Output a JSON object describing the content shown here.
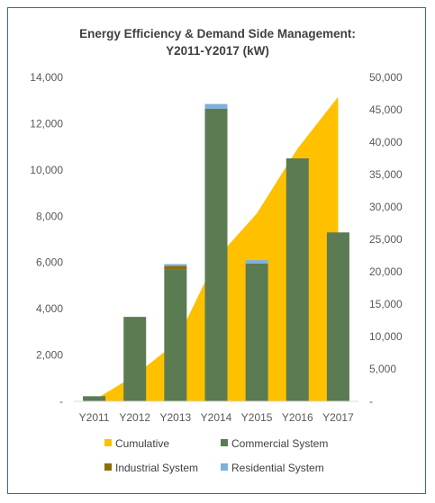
{
  "chart_data": {
    "type": "bar",
    "title_line1": "Energy Efficiency & Demand Side Management:",
    "title_line2": "Y2011-Y2017 (kW)",
    "categories": [
      "Y2011",
      "Y2012",
      "Y2013",
      "Y2014",
      "Y2015",
      "Y2016",
      "Y2017"
    ],
    "y_left": {
      "min": 0,
      "max": 14000,
      "step": 2000,
      "tick_labels": [
        "-",
        "2,000",
        "4,000",
        "6,000",
        "8,000",
        "10,000",
        "12,000",
        "14,000"
      ]
    },
    "y_right": {
      "min": 0,
      "max": 50000,
      "step": 5000,
      "tick_labels": [
        "-",
        "5,000",
        "10,000",
        "15,000",
        "20,000",
        "25,000",
        "30,000",
        "35,000",
        "40,000",
        "45,000",
        "50,000"
      ]
    },
    "grid": false,
    "legend_position": "bottom",
    "series": [
      {
        "name": "Cumulative",
        "type": "area",
        "axis": "right",
        "color": "#ffc000",
        "values": [
          200,
          4000,
          9000,
          22000,
          29000,
          39000,
          47000
        ]
      },
      {
        "name": "Commercial System",
        "type": "bar",
        "axis": "left",
        "color": "#5b7b53",
        "values": [
          220,
          3650,
          5700,
          12650,
          5950,
          10500,
          7300
        ]
      },
      {
        "name": "Industrial System",
        "type": "bar",
        "axis": "left",
        "color": "#8b6f0d",
        "values": [
          0,
          0,
          150,
          0,
          0,
          0,
          0
        ]
      },
      {
        "name": "Residential System",
        "type": "bar",
        "axis": "left",
        "color": "#7eb0de",
        "values": [
          0,
          0,
          80,
          200,
          150,
          0,
          0
        ]
      }
    ]
  }
}
